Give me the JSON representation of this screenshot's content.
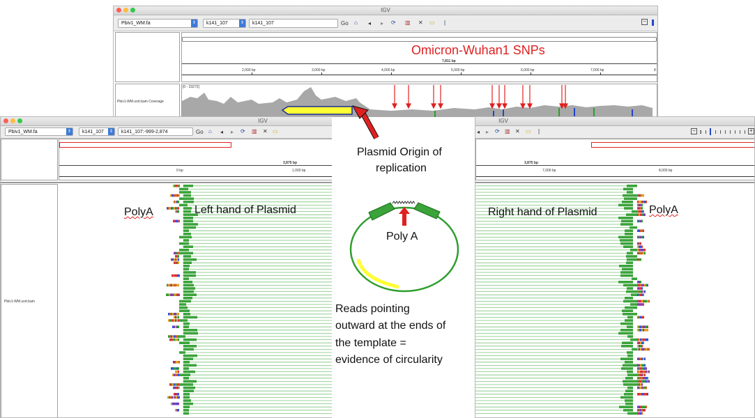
{
  "top_window": {
    "title": "IGV",
    "genome": "Pbiv1_WM.fa",
    "chromosome": "k141_107",
    "locus": "k141_107",
    "go_label": "Go",
    "ruler_length": "7,811 bp",
    "ticks": [
      "2,000 bp",
      "3,000 bp",
      "4,000 bp",
      "5,000 bp",
      "6,000 bp",
      "7,000 bp",
      "8"
    ],
    "coverage_track_label": "Pbiv1-WM.sort.bam Coverage",
    "coverage_range": "[0 - 23272]"
  },
  "left_window": {
    "title": "IGV",
    "genome": "Pbiv1_WM.fa",
    "chromosome": "k141_107",
    "locus": "k141_107:-999-2,874",
    "go_label": "Go",
    "ruler_length": "3,875 bp",
    "ticks": [
      "0 bp",
      "1,000 bp"
    ],
    "alignment_track_label": "Pbiv1-WM.sort.bam"
  },
  "right_window": {
    "title": "IGV",
    "ruler_length": "3,875 bp",
    "ticks": [
      "7,000 bp",
      "8,000 bp"
    ]
  },
  "annotations": {
    "snps_title": "Omicron-Wuhan1 SNPs",
    "origin_label": "Plasmid Origin of replication",
    "origin_line1": "Plasmid Origin of",
    "origin_line2": "replication",
    "polya_left": "PolyA",
    "polya_right": "PolyA",
    "left_plasmid": "Left hand of Plasmid",
    "right_plasmid": "Right hand of Plasmid",
    "poly_a_diagram": "Poly A",
    "reads_line1": "Reads pointing",
    "reads_line2": "outward at the ends of",
    "reads_line3": "the template =",
    "reads_line4": "evidence of circularity"
  },
  "colors": {
    "annotation_red": "#e02020",
    "read_green": "#3aa33a",
    "origin_yellow": "#ffff33",
    "coverage_gray": "#a8a8a8",
    "plasmid_circle": "#2e9e2e"
  },
  "icons": [
    "home-icon",
    "back-icon",
    "forward-icon",
    "refresh-icon",
    "ruler-icon",
    "close-x-icon",
    "comment-icon"
  ]
}
